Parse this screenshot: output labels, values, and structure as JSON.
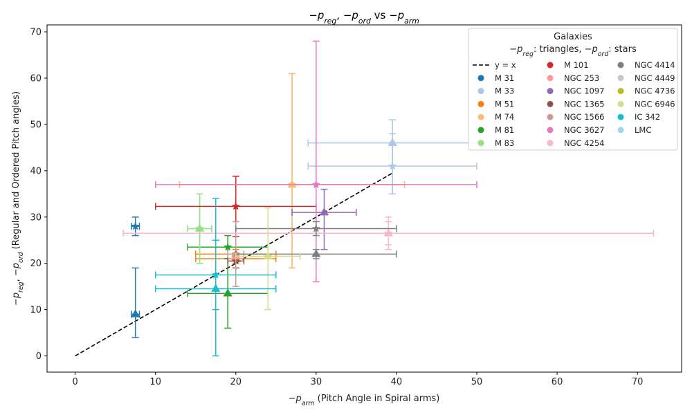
{
  "chart_data": {
    "type": "scatter",
    "title": "−p_reg, −p_ord vs −p_arm",
    "xlabel": "−p_arm (Pitch Angle in Spiral arms)",
    "ylabel": "−p_reg, −p_ord (Regular and Ordered Pitch angles)",
    "xlim": [
      -3.5,
      75.5
    ],
    "ylim": [
      -3.5,
      71.5
    ],
    "xticks": [
      0,
      10,
      20,
      30,
      40,
      50,
      60,
      70
    ],
    "yticks": [
      0,
      10,
      20,
      30,
      40,
      50,
      60,
      70
    ],
    "grid": false,
    "legend": {
      "title": "Galaxies",
      "subtitle": "−p_reg: triangles,  −p_ord: stars",
      "placement": "top-right",
      "reference_line": "y = x"
    },
    "reference_line": {
      "label": "y = x",
      "x": [
        0,
        39.5
      ],
      "y": [
        0,
        39.5
      ]
    },
    "series": [
      {
        "name": "M 31",
        "color": "#1f77b4",
        "reg": {
          "x": 7.5,
          "y": 9,
          "xerr": [
            0.5,
            0.5
          ],
          "yerr": [
            5,
            10
          ]
        },
        "ord": {
          "x": 7.5,
          "y": 28,
          "xerr": [
            0.5,
            0.5
          ],
          "yerr": [
            2,
            2
          ]
        }
      },
      {
        "name": "M 33",
        "color": "#aec7e8",
        "reg": {
          "x": 39.5,
          "y": 46,
          "xerr": [
            10.5,
            10.5
          ],
          "yerr": [
            11,
            5
          ]
        },
        "ord": {
          "x": 39.5,
          "y": 41,
          "xerr": [
            10.5,
            10.5
          ],
          "yerr": [
            6,
            7
          ]
        }
      },
      {
        "name": "M 51",
        "color": "#ff7f0e",
        "reg": {
          "x": 20,
          "y": 21,
          "xerr": [
            5,
            5
          ],
          "yerr": [
            1,
            1
          ]
        },
        "ord": {
          "x": 20,
          "y": 22,
          "xerr": [
            5,
            5
          ],
          "yerr": [
            1,
            1
          ]
        }
      },
      {
        "name": "M 74",
        "color": "#ffbb78",
        "reg": {
          "x": 27,
          "y": 37,
          "xerr": [
            14,
            14
          ],
          "yerr": [
            18,
            24
          ]
        },
        "ord": {
          "x": 27,
          "y": 37,
          "xerr": [
            14,
            14
          ],
          "yerr": [
            18,
            24
          ]
        }
      },
      {
        "name": "M 81",
        "color": "#2ca02c",
        "reg": {
          "x": 19,
          "y": 13.5,
          "xerr": [
            5,
            5
          ],
          "yerr": [
            7.5,
            7.5
          ]
        },
        "ord": {
          "x": 19,
          "y": 23.5,
          "xerr": [
            5,
            5
          ],
          "yerr": [
            2.5,
            2.5
          ]
        }
      },
      {
        "name": "M 83",
        "color": "#98df8a",
        "reg": {
          "x": 15.5,
          "y": 27.5,
          "xerr": [
            1.5,
            1.5
          ],
          "yerr": [
            7.5,
            7.5
          ]
        },
        "ord": {
          "x": 15.5,
          "y": 27.5,
          "xerr": [
            1.5,
            1.5
          ],
          "yerr": [
            7.5,
            7.5
          ]
        }
      },
      {
        "name": "M 101",
        "color": "#d62728",
        "ord": {
          "x": 20,
          "y": 32.3,
          "xerr": [
            10,
            10
          ],
          "yerr": [
            6.5,
            6.5
          ]
        }
      },
      {
        "name": "NGC 253",
        "color": "#ff9896",
        "ord": {
          "x": 20,
          "y": 21,
          "xerr": [
            1,
            1
          ],
          "yerr": [
            1,
            1
          ]
        }
      },
      {
        "name": "NGC 1097",
        "color": "#9467bd",
        "reg": {
          "x": 31,
          "y": 31,
          "xerr": [
            4,
            4
          ],
          "yerr": [
            8,
            5
          ]
        }
      },
      {
        "name": "NGC 1365",
        "color": "#8c564b",
        "ord": {
          "x": 20,
          "y": 20.5,
          "xerr": [
            1,
            1
          ],
          "yerr": [
            1.5,
            1.5
          ]
        }
      },
      {
        "name": "NGC 1566",
        "color": "#c49c94",
        "reg": {
          "x": 20,
          "y": 22,
          "xerr": [
            1,
            1
          ],
          "yerr": [
            7,
            7
          ]
        }
      },
      {
        "name": "NGC 3627",
        "color": "#e377c2",
        "ord": {
          "x": 30,
          "y": 37,
          "xerr": [
            20,
            20
          ],
          "yerr": [
            21,
            31
          ]
        }
      },
      {
        "name": "NGC 4254",
        "color": "#f7b6d2",
        "reg": {
          "x": 39,
          "y": 26.5,
          "xerr": [
            33,
            33
          ],
          "yerr": [
            2.5,
            2.5
          ]
        },
        "ord": {
          "x": 39,
          "y": 26.5,
          "xerr": [
            33,
            33
          ],
          "yerr": [
            3.5,
            3.5
          ]
        }
      },
      {
        "name": "NGC 4414",
        "color": "#7f7f7f",
        "reg": {
          "x": 30,
          "y": 22,
          "xerr": [
            10,
            10
          ],
          "yerr": [
            1,
            1
          ]
        },
        "ord": {
          "x": 30,
          "y": 27.5,
          "xerr": [
            10,
            10
          ],
          "yerr": [
            1.5,
            1.5
          ]
        }
      },
      {
        "name": "NGC 4449",
        "color": "#c7c7c7"
      },
      {
        "name": "NGC 4736",
        "color": "#bcbd22"
      },
      {
        "name": "NGC 6946",
        "color": "#dbdb8d",
        "reg": {
          "x": 24,
          "y": 21.5,
          "xerr": [
            4,
            4
          ],
          "yerr": [
            11.5,
            10.5
          ]
        },
        "ord": {
          "x": 24,
          "y": 21.5,
          "xerr": [
            4,
            4
          ],
          "yerr": [
            11.5,
            10.5
          ]
        }
      },
      {
        "name": "IC 342",
        "color": "#17becf",
        "reg": {
          "x": 17.5,
          "y": 14.5,
          "xerr": [
            7.5,
            7.5
          ],
          "yerr": [
            14.5,
            19.5
          ]
        },
        "ord": {
          "x": 17.5,
          "y": 17.5,
          "xerr": [
            7.5,
            7.5
          ],
          "yerr": [
            7.5,
            7.5
          ]
        }
      },
      {
        "name": "LMC",
        "color": "#9edae5"
      }
    ]
  }
}
